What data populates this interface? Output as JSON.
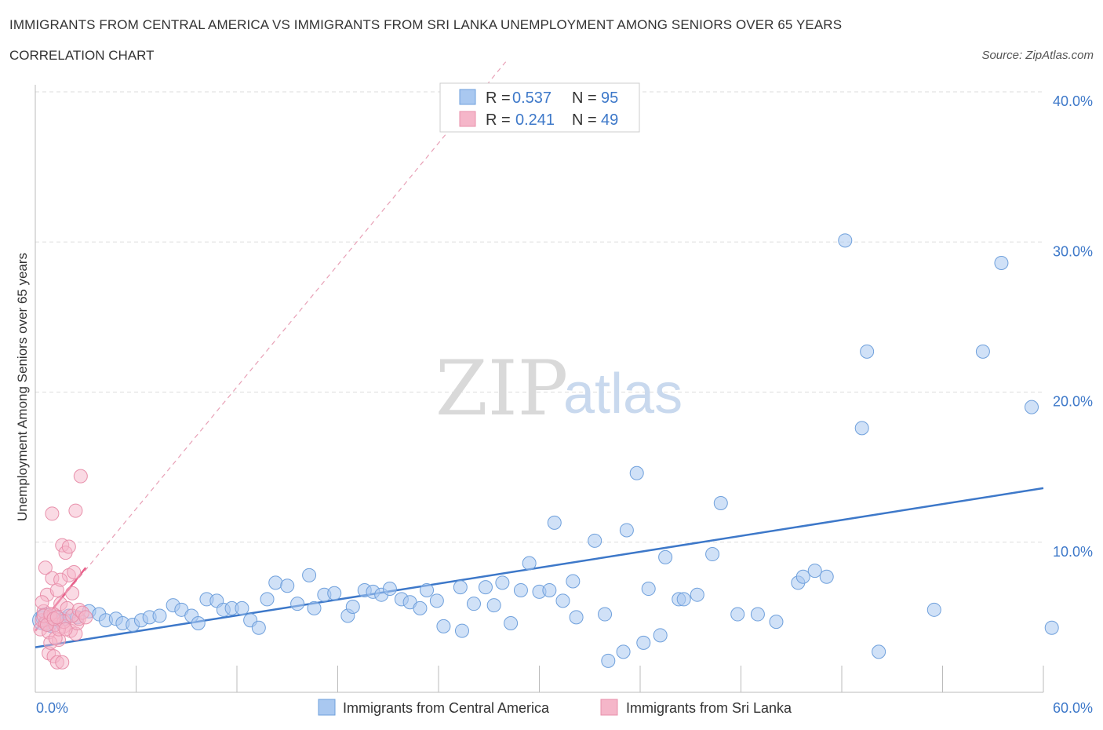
{
  "title": "IMMIGRANTS FROM CENTRAL AMERICA VS IMMIGRANTS FROM SRI LANKA UNEMPLOYMENT AMONG SENIORS OVER 65 YEARS",
  "subtitle": "CORRELATION CHART",
  "source": "Source: ZipAtlas.com",
  "watermark": {
    "zip": "ZIP",
    "atlas": "atlas"
  },
  "colors": {
    "blue": "#3d78c9",
    "blue_fill": "#a9c8f0",
    "pink": "#e8608a",
    "pink_fill": "#f5b6c9",
    "grid": "#dddddd"
  },
  "legend": {
    "rows": [
      {
        "r_label": "R =",
        "r_value": "0.537",
        "n_label": "N =",
        "n_value": "95"
      },
      {
        "r_label": "R =",
        "r_value": "0.241",
        "n_label": "N =",
        "n_value": "49"
      }
    ]
  },
  "bottom_legend": [
    "Immigrants from Central America",
    "Immigrants from Sri Lanka"
  ],
  "chart_data": {
    "type": "scatter",
    "title": "IMMIGRANTS FROM CENTRAL AMERICA VS IMMIGRANTS FROM SRI LANKA UNEMPLOYMENT AMONG SENIORS OVER 65 YEARS",
    "xlabel": "",
    "ylabel": "Unemployment Among Seniors over 65 years",
    "xlim": [
      0,
      60
    ],
    "ylim": [
      0,
      40
    ],
    "x_tick_labels": [
      "0.0%",
      "60.0%"
    ],
    "y_ticks": [
      10,
      20,
      30,
      40
    ],
    "y_tick_labels": [
      "10.0%",
      "20.0%",
      "30.0%",
      "40.0%"
    ],
    "grid": true,
    "series": [
      {
        "name": "Immigrants from Central America",
        "color": "#3d78c9",
        "trend": {
          "x": [
            0,
            60
          ],
          "y": [
            3.0,
            13.6
          ],
          "style": "solid"
        },
        "points": [
          [
            0.4,
            4.8
          ],
          [
            0.6,
            5.0
          ],
          [
            0.8,
            4.7
          ],
          [
            1.0,
            4.6
          ],
          [
            1.2,
            5.0
          ],
          [
            1.4,
            4.8
          ],
          [
            1.7,
            4.9
          ],
          [
            2.0,
            5.1
          ],
          [
            2.5,
            5.0
          ],
          [
            3.2,
            5.4
          ],
          [
            3.8,
            5.2
          ],
          [
            4.2,
            4.8
          ],
          [
            4.8,
            4.9
          ],
          [
            5.2,
            4.6
          ],
          [
            5.8,
            4.5
          ],
          [
            6.3,
            4.8
          ],
          [
            6.8,
            5.0
          ],
          [
            7.4,
            5.1
          ],
          [
            8.2,
            5.8
          ],
          [
            8.7,
            5.5
          ],
          [
            9.3,
            5.1
          ],
          [
            9.7,
            4.6
          ],
          [
            10.2,
            6.2
          ],
          [
            10.8,
            6.1
          ],
          [
            11.2,
            5.5
          ],
          [
            11.7,
            5.6
          ],
          [
            12.3,
            5.6
          ],
          [
            12.8,
            4.8
          ],
          [
            13.3,
            4.3
          ],
          [
            13.8,
            6.2
          ],
          [
            14.3,
            7.3
          ],
          [
            15.0,
            7.1
          ],
          [
            15.6,
            5.9
          ],
          [
            16.3,
            7.8
          ],
          [
            16.6,
            5.6
          ],
          [
            17.2,
            6.5
          ],
          [
            17.8,
            6.6
          ],
          [
            18.6,
            5.1
          ],
          [
            18.9,
            5.7
          ],
          [
            19.6,
            6.8
          ],
          [
            20.1,
            6.7
          ],
          [
            20.6,
            6.5
          ],
          [
            21.1,
            6.9
          ],
          [
            21.8,
            6.2
          ],
          [
            22.3,
            6.0
          ],
          [
            22.9,
            5.6
          ],
          [
            23.3,
            6.8
          ],
          [
            23.9,
            6.1
          ],
          [
            24.3,
            4.4
          ],
          [
            25.3,
            7.0
          ],
          [
            25.4,
            4.1
          ],
          [
            26.1,
            5.9
          ],
          [
            26.8,
            7.0
          ],
          [
            27.3,
            5.8
          ],
          [
            27.8,
            7.3
          ],
          [
            28.3,
            4.6
          ],
          [
            28.9,
            6.8
          ],
          [
            29.4,
            8.6
          ],
          [
            30.0,
            6.7
          ],
          [
            30.6,
            6.8
          ],
          [
            30.9,
            11.3
          ],
          [
            31.4,
            6.1
          ],
          [
            32.0,
            7.4
          ],
          [
            32.2,
            5.0
          ],
          [
            33.3,
            10.1
          ],
          [
            33.9,
            5.2
          ],
          [
            34.1,
            2.1
          ],
          [
            35.0,
            2.7
          ],
          [
            35.2,
            10.8
          ],
          [
            35.8,
            14.6
          ],
          [
            36.2,
            3.3
          ],
          [
            36.5,
            6.9
          ],
          [
            37.2,
            3.8
          ],
          [
            37.5,
            9.0
          ],
          [
            38.3,
            6.2
          ],
          [
            38.6,
            6.2
          ],
          [
            39.4,
            6.5
          ],
          [
            40.3,
            9.2
          ],
          [
            40.8,
            12.6
          ],
          [
            41.8,
            5.2
          ],
          [
            43.0,
            5.2
          ],
          [
            44.1,
            4.7
          ],
          [
            45.4,
            7.3
          ],
          [
            45.7,
            7.7
          ],
          [
            46.4,
            8.1
          ],
          [
            47.1,
            7.7
          ],
          [
            48.2,
            30.1
          ],
          [
            49.2,
            17.6
          ],
          [
            49.5,
            22.7
          ],
          [
            50.2,
            2.7
          ],
          [
            56.4,
            22.7
          ],
          [
            57.5,
            28.6
          ],
          [
            59.3,
            19.0
          ],
          [
            60.5,
            4.3
          ],
          [
            53.5,
            5.5
          ]
        ]
      },
      {
        "name": "Immigrants from Sri Lanka",
        "color": "#e8608a",
        "trend": {
          "x": [
            0,
            3.0
          ],
          "y": [
            4.1,
            8.3
          ],
          "style": "solid"
        },
        "trend_extended": {
          "x": [
            0,
            28
          ],
          "y": [
            4.1,
            42.0
          ],
          "style": "dashed"
        },
        "points": [
          [
            0.3,
            4.2
          ],
          [
            0.4,
            4.8
          ],
          [
            0.5,
            5.4
          ],
          [
            0.6,
            4.6
          ],
          [
            0.7,
            6.5
          ],
          [
            0.8,
            4.0
          ],
          [
            0.9,
            5.0
          ],
          [
            1.0,
            7.6
          ],
          [
            1.1,
            5.2
          ],
          [
            1.2,
            4.5
          ],
          [
            1.3,
            6.8
          ],
          [
            1.4,
            3.5
          ],
          [
            1.5,
            5.9
          ],
          [
            1.6,
            9.8
          ],
          [
            1.7,
            4.4
          ],
          [
            1.8,
            9.3
          ],
          [
            1.9,
            5.6
          ],
          [
            2.0,
            7.8
          ],
          [
            2.1,
            4.1
          ],
          [
            2.2,
            6.6
          ],
          [
            2.3,
            8.0
          ],
          [
            2.4,
            3.9
          ],
          [
            2.5,
            4.6
          ],
          [
            2.6,
            4.9
          ],
          [
            2.7,
            14.4
          ],
          [
            0.4,
            6.0
          ],
          [
            0.6,
            8.3
          ],
          [
            0.8,
            2.6
          ],
          [
            0.9,
            3.3
          ],
          [
            1.0,
            11.9
          ],
          [
            1.1,
            2.4
          ],
          [
            1.2,
            3.6
          ],
          [
            1.3,
            2.0
          ],
          [
            1.4,
            4.2
          ],
          [
            1.5,
            7.5
          ],
          [
            1.6,
            2.0
          ],
          [
            1.7,
            4.7
          ],
          [
            1.8,
            4.2
          ],
          [
            2.0,
            9.7
          ],
          [
            2.2,
            5.1
          ],
          [
            2.4,
            12.1
          ],
          [
            2.6,
            5.5
          ],
          [
            2.8,
            5.3
          ],
          [
            3.0,
            5.0
          ],
          [
            0.5,
            5.1
          ],
          [
            0.7,
            4.5
          ],
          [
            0.9,
            5.2
          ],
          [
            1.1,
            4.9
          ],
          [
            1.3,
            5.0
          ]
        ]
      }
    ]
  }
}
